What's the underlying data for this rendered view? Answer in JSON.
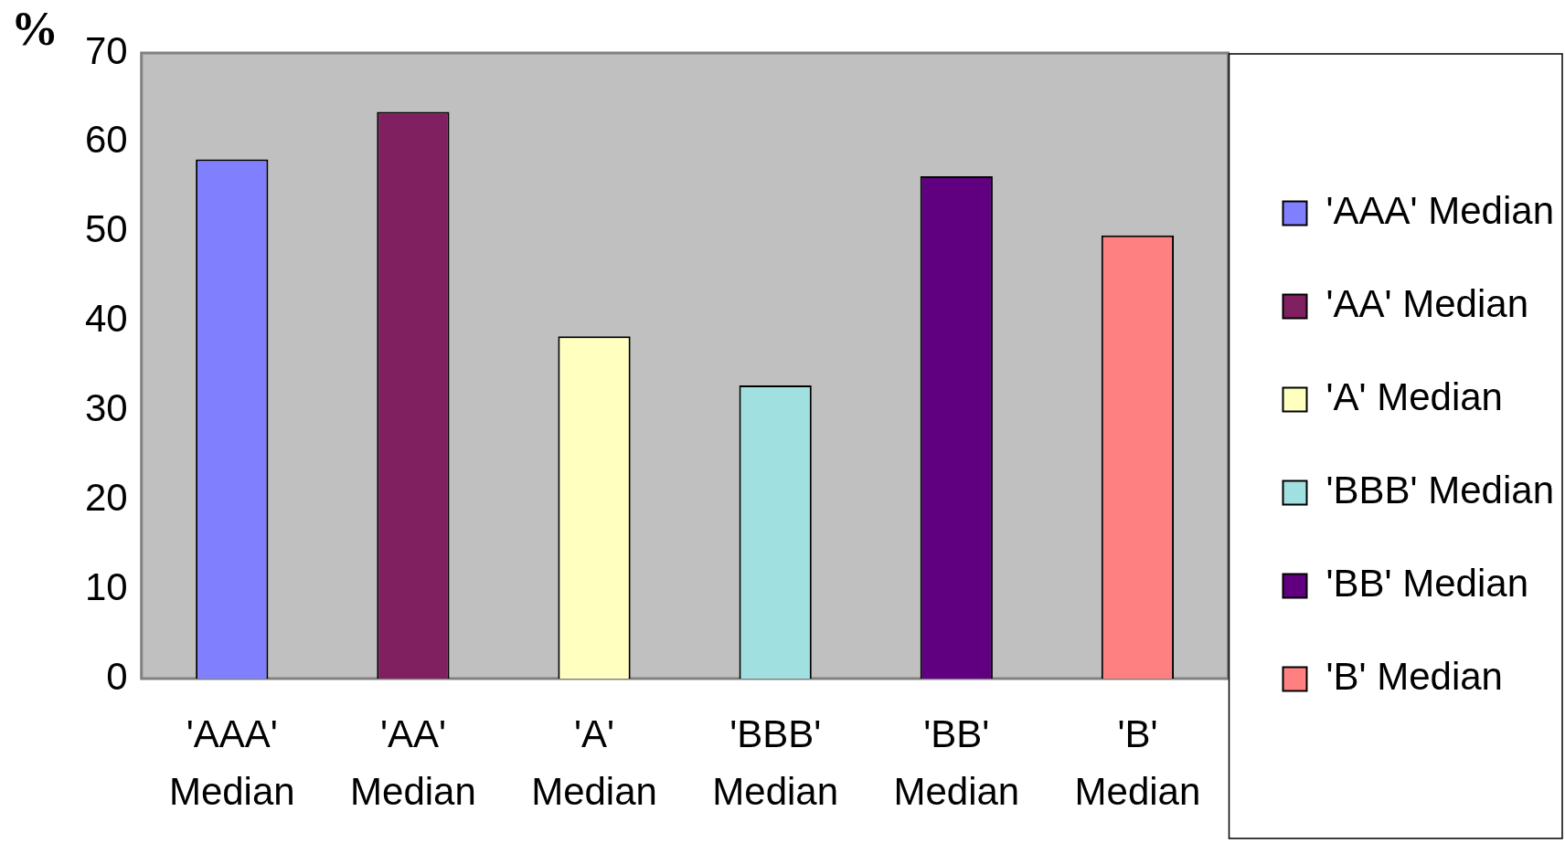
{
  "chart_data": {
    "type": "bar",
    "ylabel": "%",
    "categories": [
      "'AAA' Median",
      "'AA' Median",
      "'A' Median",
      "'BBB' Median",
      "'BB' Median",
      "'B' Median"
    ],
    "series": [
      {
        "name": "'AAA' Median",
        "color": "#8080ff",
        "values": [
          58.1,
          null,
          null,
          null,
          null,
          null
        ]
      },
      {
        "name": "'AA' Median",
        "color": "#802060",
        "values": [
          null,
          63.4,
          null,
          null,
          null,
          null
        ]
      },
      {
        "name": "'A' Median",
        "color": "#ffffc0",
        "values": [
          null,
          null,
          38.3,
          null,
          null,
          null
        ]
      },
      {
        "name": "'BBB' Median",
        "color": "#a0e0e0",
        "values": [
          null,
          null,
          null,
          32.8,
          null,
          null
        ]
      },
      {
        "name": "'BB' Median",
        "color": "#600080",
        "values": [
          null,
          null,
          null,
          null,
          56.2,
          null
        ]
      },
      {
        "name": "'B' Median",
        "color": "#ff8080",
        "values": [
          null,
          null,
          null,
          null,
          null,
          49.6
        ]
      }
    ],
    "ylim": [
      0,
      70
    ],
    "yticks": [
      0,
      10,
      20,
      30,
      40,
      50,
      60,
      70
    ],
    "grid": false,
    "legend": "right"
  }
}
